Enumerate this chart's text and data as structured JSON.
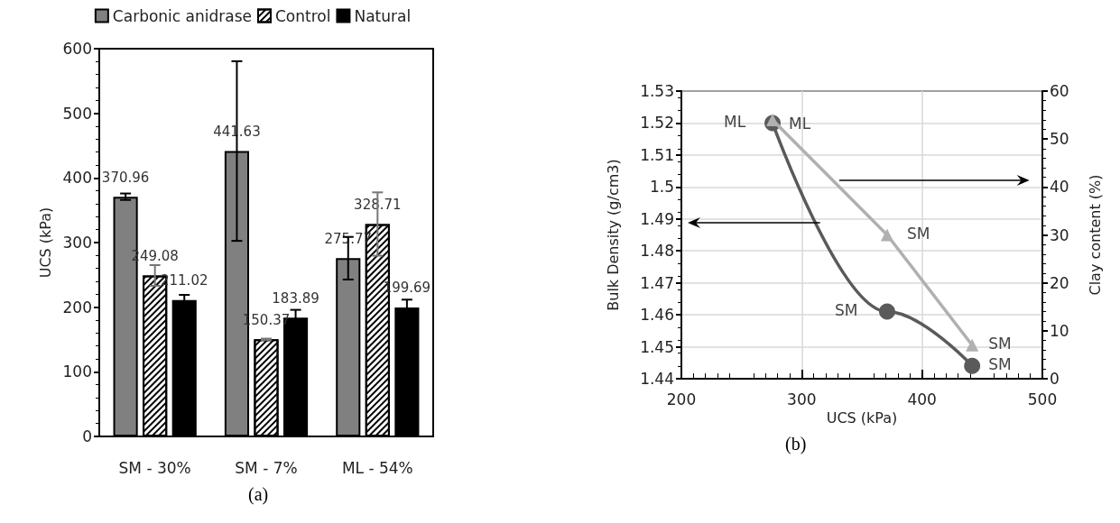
{
  "chart_data": [
    {
      "type": "bar",
      "ylabel": "UCS (kPa)",
      "categories": [
        "SM - 30%",
        "SM - 7%",
        "ML - 54%"
      ],
      "series": [
        {
          "name": "Carbonic anidrase",
          "color": "#808080",
          "values": [
            370.96,
            441.63,
            275.77
          ],
          "errors": [
            5,
            139,
            33
          ]
        },
        {
          "name": "Control",
          "color": "#ffffff",
          "values": [
            249.08,
            150.37,
            328.71
          ],
          "errors": [
            16,
            1,
            49
          ]
        },
        {
          "name": "Natural",
          "color": "#000000",
          "values": [
            211.02,
            183.89,
            199.69
          ],
          "errors": [
            8,
            12,
            12
          ]
        }
      ],
      "ylim": [
        0,
        600
      ],
      "yticks": [
        0,
        100,
        200,
        300,
        400,
        500,
        600
      ],
      "data_labels": true,
      "legend": "top",
      "grid": false,
      "annotations": [
        "(a)"
      ]
    },
    {
      "type": "line",
      "xlabel": "UCS (kPa)",
      "ylabel": "Bulk Density (g/cm3)",
      "y2label": "Clay content (%)",
      "x": [
        275.77,
        370.96,
        441.63
      ],
      "series": [
        {
          "color": "#5a5a5a",
          "values": [
            1.52,
            1.461,
            1.444
          ],
          "marker": "circle"
        },
        {
          "color": "#b0b0b0",
          "values": [
            54,
            30,
            7
          ],
          "axis": "y2",
          "marker": "triangle"
        }
      ],
      "xlim": [
        200,
        500
      ],
      "xticks": [
        200,
        300,
        400,
        500
      ],
      "ylim": [
        1.44,
        1.53
      ],
      "yticks": [
        1.44,
        1.45,
        1.46,
        1.47,
        1.48,
        1.49,
        1.5,
        1.51,
        1.52,
        1.53
      ],
      "y2lim": [
        0,
        60
      ],
      "y2ticks": [
        0,
        10,
        20,
        30,
        40,
        50,
        60
      ],
      "grid": true,
      "legend": false,
      "annotations": [
        {
          "text": "ML",
          "x": 275.77,
          "y": 1.52
        },
        {
          "text": "ML",
          "x": 275.77,
          "y": 1.5195
        },
        {
          "text": "SM",
          "x": 370.96,
          "y": 1.485
        },
        {
          "text": "SM",
          "x": 370.96,
          "y": 1.461
        },
        {
          "text": "SM",
          "x": 441.63,
          "y": 1.4505
        },
        {
          "text": "SM",
          "x": 441.63,
          "y": 1.444
        },
        "(b)"
      ]
    }
  ]
}
